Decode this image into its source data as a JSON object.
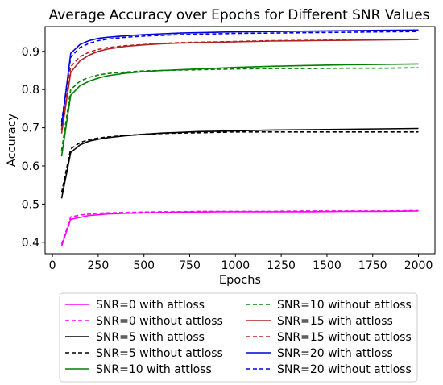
{
  "chart_data": {
    "type": "line",
    "title": "Average Accuracy over Epochs for Different SNR Values",
    "xlabel": "Epochs",
    "ylabel": "Accuracy",
    "xlim": [
      -40,
      2090
    ],
    "ylim": [
      0.37,
      0.965
    ],
    "xticks": [
      0,
      250,
      500,
      750,
      1000,
      1250,
      1500,
      1750,
      2000
    ],
    "yticks": [
      0.4,
      0.5,
      0.6,
      0.7,
      0.8,
      0.9
    ],
    "ytick_labels": [
      "0.4",
      "0.5",
      "0.6",
      "0.7",
      "0.8",
      "0.9"
    ],
    "grid": false,
    "legend_position": "below",
    "x": [
      50,
      100,
      150,
      200,
      250,
      300,
      400,
      500,
      600,
      700,
      800,
      900,
      1000,
      1200,
      1400,
      1600,
      1800,
      2000
    ],
    "series": [
      {
        "name": "SNR=0 with attloss",
        "color": "#ff00ff",
        "dash": "solid",
        "values": [
          0.39,
          0.46,
          0.465,
          0.47,
          0.472,
          0.474,
          0.476,
          0.477,
          0.478,
          0.479,
          0.479,
          0.48,
          0.48,
          0.48,
          0.48,
          0.481,
          0.481,
          0.482
        ]
      },
      {
        "name": "SNR=0 without attloss",
        "color": "#ff00ff",
        "dash": "dashed",
        "values": [
          0.395,
          0.466,
          0.471,
          0.474,
          0.476,
          0.477,
          0.478,
          0.479,
          0.48,
          0.48,
          0.481,
          0.481,
          0.481,
          0.481,
          0.482,
          0.482,
          0.482,
          0.483
        ]
      },
      {
        "name": "SNR=5 with attloss",
        "color": "#000000",
        "dash": "solid",
        "values": [
          0.515,
          0.635,
          0.655,
          0.665,
          0.67,
          0.674,
          0.679,
          0.683,
          0.686,
          0.688,
          0.69,
          0.691,
          0.692,
          0.694,
          0.695,
          0.696,
          0.697,
          0.698
        ]
      },
      {
        "name": "SNR=5 without attloss",
        "color": "#000000",
        "dash": "dashed",
        "values": [
          0.53,
          0.645,
          0.661,
          0.669,
          0.673,
          0.676,
          0.68,
          0.683,
          0.685,
          0.686,
          0.687,
          0.688,
          0.689,
          0.689,
          0.689,
          0.689,
          0.689,
          0.689
        ]
      },
      {
        "name": "SNR=10 with attloss",
        "color": "#008000",
        "dash": "solid",
        "values": [
          0.625,
          0.785,
          0.81,
          0.822,
          0.83,
          0.836,
          0.843,
          0.847,
          0.85,
          0.852,
          0.854,
          0.856,
          0.858,
          0.861,
          0.863,
          0.865,
          0.866,
          0.867
        ]
      },
      {
        "name": "SNR=10 without attloss",
        "color": "#008000",
        "dash": "dashed",
        "values": [
          0.64,
          0.8,
          0.822,
          0.832,
          0.838,
          0.842,
          0.846,
          0.849,
          0.85,
          0.851,
          0.852,
          0.853,
          0.854,
          0.855,
          0.855,
          0.856,
          0.856,
          0.857
        ]
      },
      {
        "name": "SNR=15 with attloss",
        "color": "#b22222",
        "dash": "solid",
        "values": [
          0.685,
          0.845,
          0.875,
          0.89,
          0.9,
          0.906,
          0.913,
          0.917,
          0.92,
          0.922,
          0.923,
          0.924,
          0.925,
          0.927,
          0.928,
          0.929,
          0.93,
          0.931
        ]
      },
      {
        "name": "SNR=15 without attloss",
        "color": "#b22222",
        "dash": "dashed",
        "values": [
          0.695,
          0.86,
          0.886,
          0.898,
          0.905,
          0.91,
          0.915,
          0.918,
          0.921,
          0.923,
          0.924,
          0.925,
          0.926,
          0.928,
          0.929,
          0.93,
          0.931,
          0.932
        ]
      },
      {
        "name": "SNR=20 with attloss",
        "color": "#0000dd",
        "dash": "solid",
        "values": [
          0.705,
          0.895,
          0.918,
          0.928,
          0.934,
          0.937,
          0.941,
          0.944,
          0.946,
          0.948,
          0.949,
          0.95,
          0.951,
          0.952,
          0.953,
          0.954,
          0.955,
          0.956
        ]
      },
      {
        "name": "SNR=20 without attloss",
        "color": "#0000dd",
        "dash": "dashed",
        "values": [
          0.715,
          0.885,
          0.91,
          0.921,
          0.928,
          0.932,
          0.937,
          0.94,
          0.942,
          0.944,
          0.945,
          0.946,
          0.947,
          0.948,
          0.949,
          0.95,
          0.951,
          0.952
        ]
      }
    ]
  }
}
